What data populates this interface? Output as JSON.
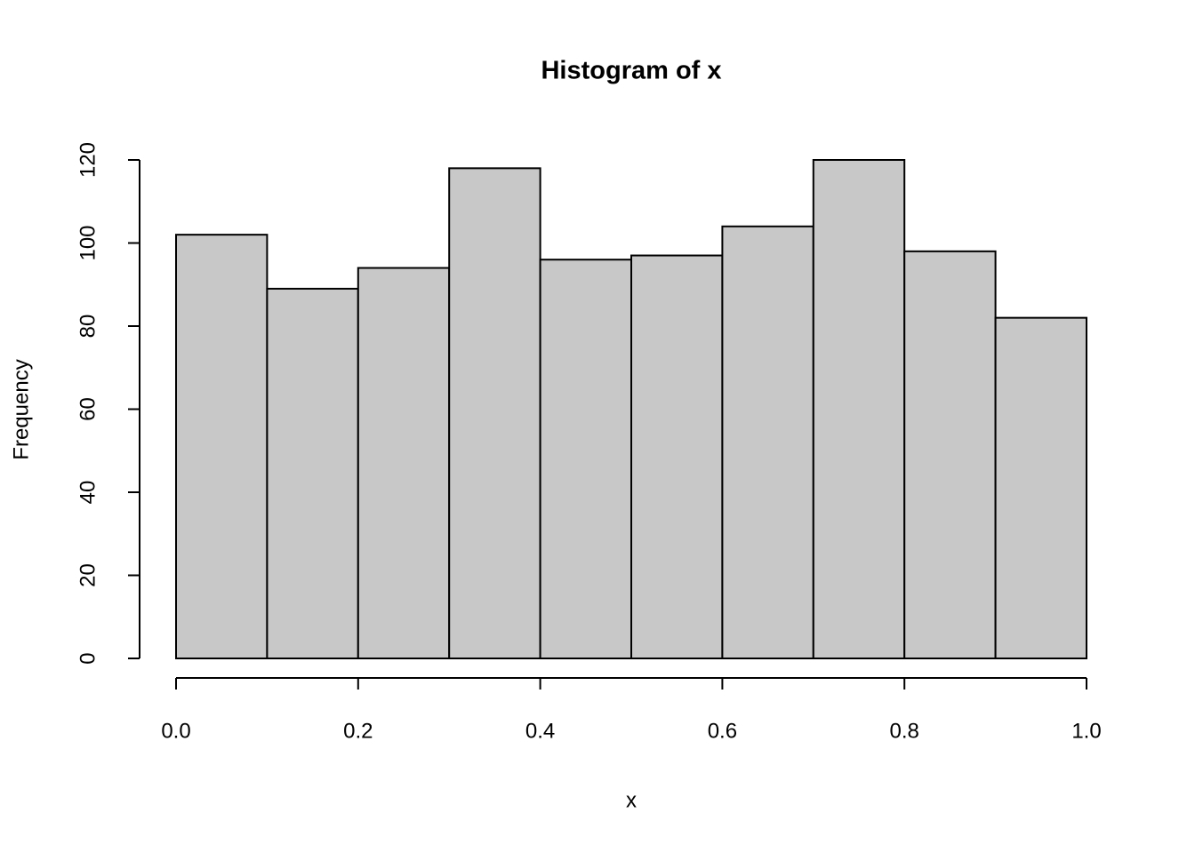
{
  "chart_data": {
    "type": "histogram",
    "title": "Histogram of x",
    "xlabel": "x",
    "ylabel": "Frequency",
    "bins": [
      0,
      0.1,
      0.2,
      0.3,
      0.4,
      0.5,
      0.6,
      0.7,
      0.8,
      0.9,
      1
    ],
    "values": [
      102,
      89,
      94,
      118,
      96,
      97,
      104,
      120,
      98,
      82
    ],
    "color": "#c8c8c8",
    "xlim": [
      0,
      1
    ],
    "xticks": [
      {
        "value": 0,
        "label": "0.0"
      },
      0.2,
      0.4,
      0.6,
      0.8,
      {
        "value": 1,
        "label": "1.0"
      }
    ],
    "ylim": [
      0,
      120
    ],
    "yticks": [
      0,
      20,
      40,
      60,
      80,
      100,
      120
    ]
  }
}
